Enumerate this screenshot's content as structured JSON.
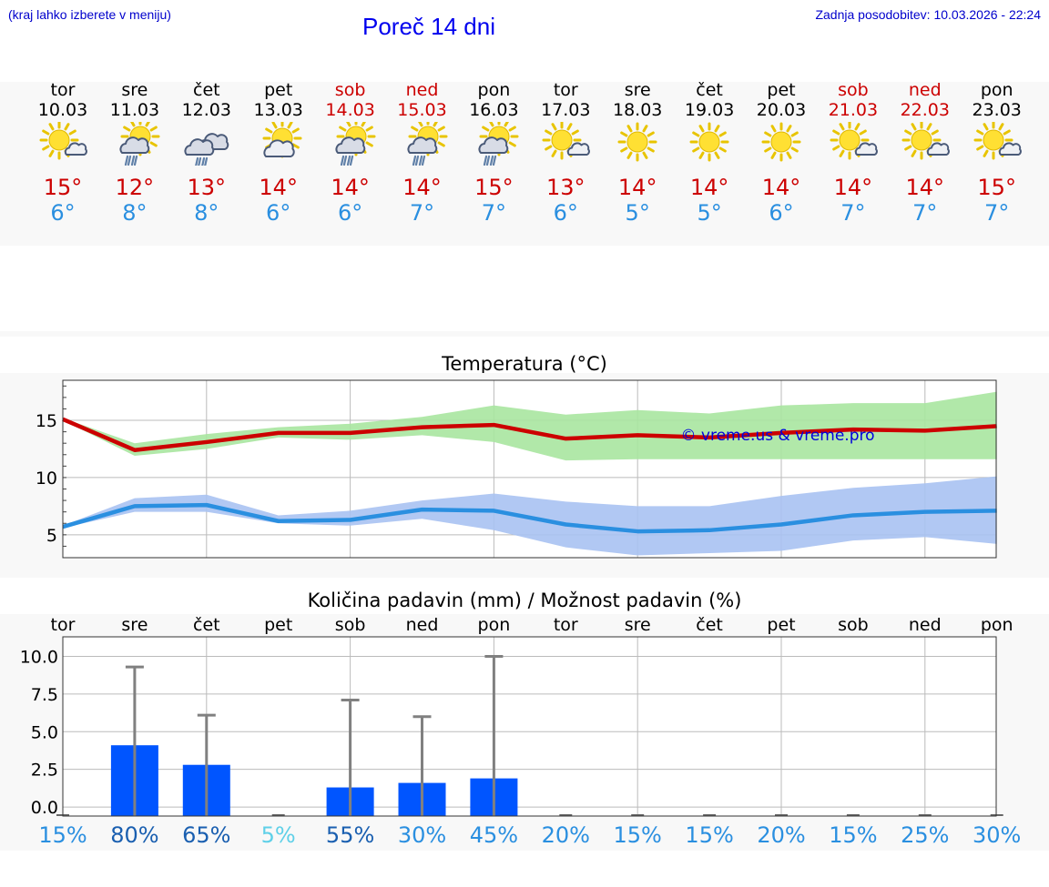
{
  "header": {
    "menu_hint": "(kraj lahko izberete v meniju)",
    "title": "Poreč 14 dni",
    "updated": "Zadnja posodobitev: 10.03.2026 - 22:24"
  },
  "colors": {
    "max": "#cc0000",
    "min": "#2a8fe0",
    "bar": "#0055ff",
    "maxBand": "#a8e6a0",
    "minBand": "#a9c2f2"
  },
  "days": [
    {
      "name": "tor",
      "date": "10.03",
      "weekend": false,
      "icon": "sun-cloud-icon",
      "max": "15°",
      "min": "6°"
    },
    {
      "name": "sre",
      "date": "11.03",
      "weekend": false,
      "icon": "sun-cloud-rain-icon",
      "max": "12°",
      "min": "8°"
    },
    {
      "name": "čet",
      "date": "12.03",
      "weekend": false,
      "icon": "cloud-rain-icon",
      "max": "13°",
      "min": "8°"
    },
    {
      "name": "pet",
      "date": "13.03",
      "weekend": false,
      "icon": "sun-big-cloud-icon",
      "max": "14°",
      "min": "6°"
    },
    {
      "name": "sob",
      "date": "14.03",
      "weekend": true,
      "icon": "sun-cloud-rain-icon",
      "max": "14°",
      "min": "6°"
    },
    {
      "name": "ned",
      "date": "15.03",
      "weekend": true,
      "icon": "sun-cloud-rain-icon",
      "max": "14°",
      "min": "7°"
    },
    {
      "name": "pon",
      "date": "16.03",
      "weekend": false,
      "icon": "sun-cloud-rain-icon",
      "max": "15°",
      "min": "7°"
    },
    {
      "name": "tor",
      "date": "17.03",
      "weekend": false,
      "icon": "sun-cloud-icon",
      "max": "13°",
      "min": "6°"
    },
    {
      "name": "sre",
      "date": "18.03",
      "weekend": false,
      "icon": "sun-icon",
      "max": "14°",
      "min": "5°"
    },
    {
      "name": "čet",
      "date": "19.03",
      "weekend": false,
      "icon": "sun-icon",
      "max": "14°",
      "min": "5°"
    },
    {
      "name": "pet",
      "date": "20.03",
      "weekend": false,
      "icon": "sun-icon",
      "max": "14°",
      "min": "6°"
    },
    {
      "name": "sob",
      "date": "21.03",
      "weekend": true,
      "icon": "sun-cloud-icon",
      "max": "14°",
      "min": "7°"
    },
    {
      "name": "ned",
      "date": "22.03",
      "weekend": true,
      "icon": "sun-cloud-icon",
      "max": "14°",
      "min": "7°"
    },
    {
      "name": "pon",
      "date": "23.03",
      "weekend": false,
      "icon": "sun-cloud-icon",
      "max": "15°",
      "min": "7°"
    }
  ],
  "chart_data": [
    {
      "type": "line",
      "title": "Temperatura (°C)",
      "watermark": "© vreme.us & vreme.pro",
      "ylim": [
        3,
        18.5
      ],
      "yticks": [
        5,
        10,
        15
      ],
      "grid": true,
      "series": [
        {
          "name": "max",
          "values": [
            15.1,
            12.4,
            13.1,
            13.9,
            13.9,
            14.4,
            14.6,
            13.4,
            13.7,
            13.5,
            13.9,
            14.2,
            14.1,
            14.5
          ],
          "band_low": [
            15.0,
            11.9,
            12.5,
            13.5,
            13.3,
            13.7,
            13.1,
            11.5,
            11.6,
            11.6,
            11.6,
            11.6,
            11.6,
            11.6
          ],
          "band_high": [
            15.2,
            13.0,
            13.8,
            14.4,
            14.7,
            15.3,
            16.3,
            15.5,
            15.9,
            15.6,
            16.3,
            16.5,
            16.5,
            17.5
          ]
        },
        {
          "name": "min",
          "values": [
            5.7,
            7.5,
            7.6,
            6.2,
            6.3,
            7.2,
            7.1,
            5.9,
            5.3,
            5.4,
            5.9,
            6.7,
            7.0,
            7.1
          ],
          "band_low": [
            5.6,
            7.0,
            7.0,
            6.0,
            5.8,
            6.4,
            5.4,
            3.9,
            3.2,
            3.4,
            3.6,
            4.5,
            4.8,
            4.2
          ],
          "band_high": [
            5.8,
            8.2,
            8.5,
            6.7,
            7.1,
            8.0,
            8.6,
            7.9,
            7.5,
            7.5,
            8.4,
            9.1,
            9.5,
            10.1
          ]
        }
      ]
    },
    {
      "type": "bar",
      "title": "Količina padavin (mm) / Možnost padavin (%)",
      "categories": [
        "tor",
        "sre",
        "čet",
        "pet",
        "sob",
        "ned",
        "pon",
        "tor",
        "sre",
        "čet",
        "pet",
        "sob",
        "ned",
        "pon"
      ],
      "values": [
        0,
        4.1,
        2.8,
        0,
        1.3,
        1.6,
        1.9,
        0,
        0,
        0,
        0,
        0,
        0,
        0
      ],
      "error_high": [
        0,
        9.3,
        6.1,
        0,
        7.1,
        6.0,
        10.0,
        0,
        0,
        0,
        0,
        0,
        0,
        0
      ],
      "ylim": [
        -0.6,
        11.3
      ],
      "yticks": [
        0,
        2.5,
        5.0,
        7.5,
        10.0
      ],
      "ytick_labels": [
        "0.0",
        "2.5",
        "5.0",
        "7.5",
        "10.0"
      ],
      "probability": [
        "15%",
        "80%",
        "65%",
        "5%",
        "55%",
        "30%",
        "45%",
        "20%",
        "15%",
        "15%",
        "20%",
        "15%",
        "25%",
        "30%"
      ],
      "probability_colors": [
        "#2a8fe0",
        "#1a5fb0",
        "#1a5fb0",
        "#5fd0e8",
        "#1a5fb0",
        "#2a8fe0",
        "#2a8fe0",
        "#2a8fe0",
        "#2a8fe0",
        "#2a8fe0",
        "#2a8fe0",
        "#2a8fe0",
        "#2a8fe0",
        "#2a8fe0"
      ]
    }
  ]
}
